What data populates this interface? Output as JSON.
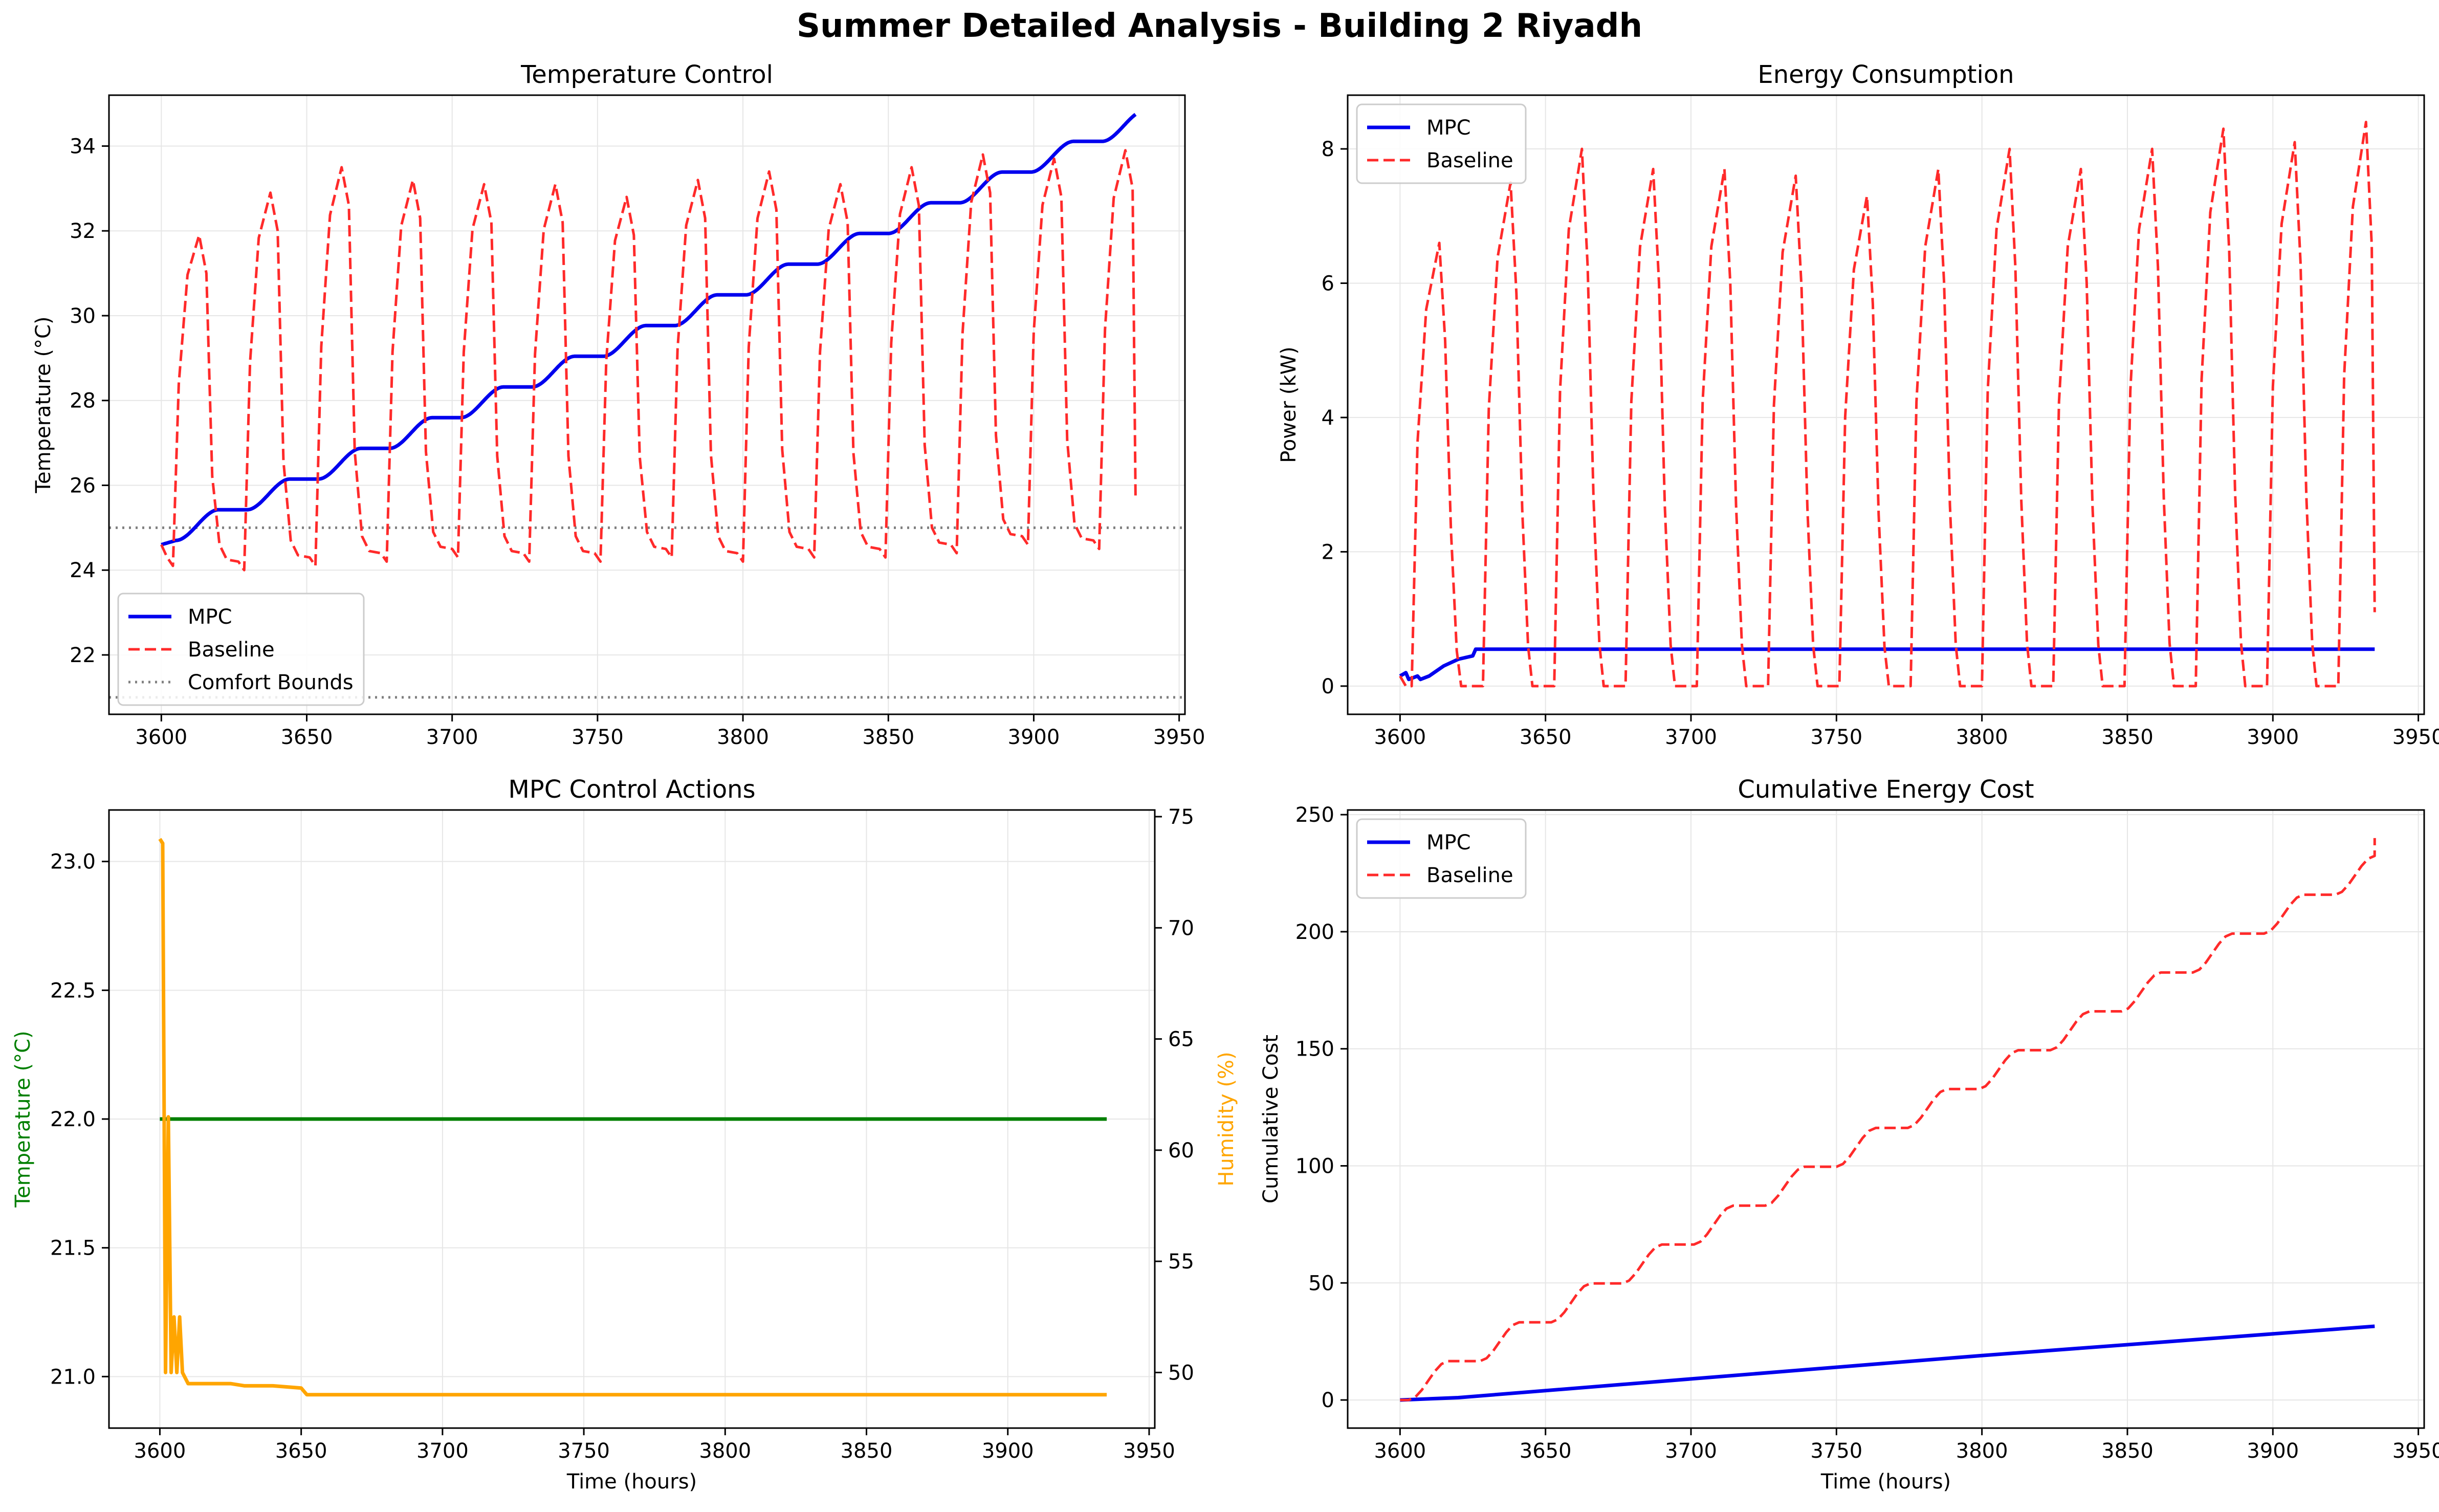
{
  "figure": {
    "title": "Summer Detailed Analysis - Building 2 Riyadh"
  },
  "colors": {
    "mpc": "#0000ee",
    "baseline": "#ff2a2a",
    "comfort": "#808080",
    "setpoint": "#007f00",
    "humidity": "#ffa500",
    "grid": "#e6e6e6"
  },
  "chart_data": [
    {
      "id": "temp",
      "type": "line",
      "title": "Temperature Control",
      "xlabel": "",
      "ylabel": "Temperature (°C)",
      "xlim": [
        3582,
        3952
      ],
      "ylim": [
        20.6,
        35.2
      ],
      "xticks": [
        3600,
        3650,
        3700,
        3750,
        3800,
        3850,
        3900,
        3950
      ],
      "yticks": [
        22,
        24,
        26,
        28,
        30,
        32,
        34
      ],
      "grid": true,
      "legend": {
        "position": "lower-left",
        "entries": [
          "MPC",
          "Baseline",
          "Comfort Bounds"
        ]
      },
      "series": [
        {
          "name": "MPC",
          "style": "solid",
          "color": "mpc",
          "generator": "mpc_temp"
        },
        {
          "name": "Baseline",
          "style": "dashed",
          "color": "baseline",
          "generator": "baseline_temp"
        }
      ],
      "hlines": [
        {
          "name": "Comfort Bounds",
          "values": [
            21,
            25
          ],
          "style": "dotted",
          "color": "comfort"
        }
      ],
      "mpc_temp_points": [
        [
          3600,
          24.6
        ],
        [
          3605,
          24.7
        ],
        [
          3935,
          34.45
        ]
      ],
      "baseline_temp_cycle": {
        "start": 3600,
        "period": 24.5,
        "cycles": 14,
        "end": 3935,
        "min": [
          24.1,
          24.0,
          24.1,
          24.2,
          24.3,
          24.2,
          24.2,
          24.3,
          24.2,
          24.3,
          24.3,
          24.4,
          24.6,
          24.5
        ],
        "max": [
          31.9,
          32.9,
          33.5,
          33.2,
          33.1,
          33.1,
          32.8,
          33.2,
          33.4,
          33.1,
          33.5,
          33.8,
          33.7,
          33.9
        ],
        "final": 25.7
      }
    },
    {
      "id": "energy",
      "type": "line",
      "title": "Energy Consumption",
      "xlabel": "",
      "ylabel": "Power (kW)",
      "xlim": [
        3582,
        3952
      ],
      "ylim": [
        -0.42,
        8.8
      ],
      "xticks": [
        3600,
        3650,
        3700,
        3750,
        3800,
        3850,
        3900,
        3950
      ],
      "yticks": [
        0,
        2,
        4,
        6,
        8
      ],
      "grid": true,
      "legend": {
        "position": "upper-left",
        "entries": [
          "MPC",
          "Baseline"
        ]
      },
      "series": [
        {
          "name": "MPC",
          "style": "solid",
          "color": "mpc",
          "generator": "mpc_power"
        },
        {
          "name": "Baseline",
          "style": "dashed",
          "color": "baseline",
          "generator": "baseline_power"
        }
      ],
      "mpc_power_points": [
        [
          3600,
          0.15
        ],
        [
          3602,
          0.2
        ],
        [
          3603,
          0.1
        ],
        [
          3606,
          0.15
        ],
        [
          3607,
          0.1
        ],
        [
          3610,
          0.15
        ],
        [
          3615,
          0.3
        ],
        [
          3620,
          0.4
        ],
        [
          3625,
          0.45
        ],
        [
          3626,
          0.55
        ],
        [
          3935,
          0.55
        ]
      ],
      "baseline_power_cycle": {
        "start": 3600,
        "period": 24.5,
        "cycles": 14,
        "end": 3935,
        "peak": [
          6.6,
          7.5,
          8.0,
          7.7,
          7.7,
          7.6,
          7.3,
          7.7,
          8.0,
          7.7,
          8.0,
          8.3,
          8.1,
          8.4
        ],
        "final": 1.1
      }
    },
    {
      "id": "control",
      "type": "line",
      "title": "MPC Control Actions",
      "xlabel": "Time (hours)",
      "ylabel": "Temperature (°C)",
      "ylabel_right": "Humidity (%)",
      "xlim": [
        3582,
        3952
      ],
      "ylim": [
        20.8,
        23.2
      ],
      "ylim_right": [
        47.5,
        75.3
      ],
      "xticks": [
        3600,
        3650,
        3700,
        3750,
        3800,
        3850,
        3900,
        3950
      ],
      "yticks": [
        21.0,
        21.5,
        22.0,
        22.5,
        23.0
      ],
      "yticks_right": [
        50,
        55,
        60,
        65,
        70,
        75
      ],
      "grid": true,
      "series": [
        {
          "name": "Temperature setpoint",
          "axis": "left",
          "color": "setpoint",
          "points": [
            [
              3600,
              22.0
            ],
            [
              3935,
              22.0
            ]
          ]
        },
        {
          "name": "Humidity setpoint",
          "axis": "right",
          "color": "humidity",
          "points": [
            [
              3600,
              74.0
            ],
            [
              3601,
              73.8
            ],
            [
              3602,
              50.0
            ],
            [
              3603,
              61.5
            ],
            [
              3604,
              50.0
            ],
            [
              3605,
              52.5
            ],
            [
              3606,
              50.0
            ],
            [
              3607,
              52.5
            ],
            [
              3608,
              50.0
            ],
            [
              3610,
              49.5
            ],
            [
              3620,
              49.5
            ],
            [
              3625,
              49.5
            ],
            [
              3630,
              49.4
            ],
            [
              3640,
              49.4
            ],
            [
              3650,
              49.3
            ],
            [
              3652,
              49.0
            ],
            [
              3675,
              49.0
            ],
            [
              3935,
              49.0
            ]
          ]
        }
      ]
    },
    {
      "id": "cost",
      "type": "line",
      "title": "Cumulative Energy Cost",
      "xlabel": "Time (hours)",
      "ylabel": "Cumulative Cost",
      "xlim": [
        3582,
        3952
      ],
      "ylim": [
        -12,
        252
      ],
      "xticks": [
        3600,
        3650,
        3700,
        3750,
        3800,
        3850,
        3900,
        3950
      ],
      "yticks": [
        0,
        50,
        100,
        150,
        200,
        250
      ],
      "grid": true,
      "legend": {
        "position": "upper-left",
        "entries": [
          "MPC",
          "Baseline"
        ]
      },
      "series": [
        {
          "name": "MPC",
          "style": "solid",
          "color": "mpc",
          "points": [
            [
              3600,
              0
            ],
            [
              3620,
              1
            ],
            [
              3700,
              9
            ],
            [
              3800,
              19
            ],
            [
              3935,
              31.5
            ]
          ]
        },
        {
          "name": "Baseline",
          "style": "dashed",
          "color": "baseline",
          "generator": "baseline_cost"
        }
      ],
      "baseline_cost_steps": {
        "start": 3600,
        "period": 24.5,
        "step": 16.6,
        "rise_fraction": 0.55,
        "end": 3935,
        "final": 240
      }
    }
  ],
  "legend_labels": {
    "mpc": "MPC",
    "baseline": "Baseline",
    "comfort": "Comfort Bounds"
  }
}
